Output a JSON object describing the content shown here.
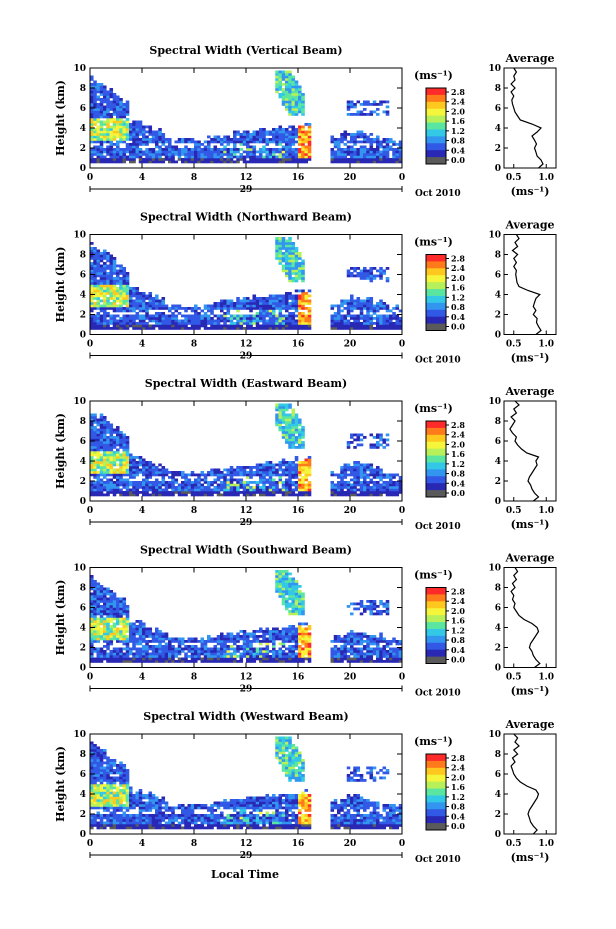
{
  "figure": {
    "xlabel": "Local Time",
    "date_label": "Oct 2010",
    "day_label": "29",
    "ylabel": "Height (km)",
    "unit_label": "(ms⁻¹)",
    "avg_title": "Average",
    "avg_xlabel": "(ms⁻¹)"
  },
  "colorbar": {
    "ticks": [
      "2.8",
      "2.4",
      "2.0",
      "1.6",
      "1.2",
      "0.8",
      "0.4",
      "0.0"
    ],
    "colors": [
      "#ff2a2a",
      "#ff7a1a",
      "#ffc81e",
      "#f5f53c",
      "#b8f05a",
      "#5ae6a0",
      "#32c8e6",
      "#3296f0",
      "#3258e6",
      "#2828b4",
      "#5a5a5a"
    ]
  },
  "chart_data": [
    {
      "type": "heatmap",
      "title": "Spectral Width (Vertical Beam)",
      "x_ticks": [
        "0",
        "4",
        "8",
        "12",
        "16",
        "20",
        "0"
      ],
      "y_ticks": [
        "0",
        "2",
        "4",
        "6",
        "8",
        "10"
      ],
      "xlim": [
        0,
        24
      ],
      "ylim": [
        0,
        10
      ],
      "colorbar_range": [
        0.0,
        3.0
      ],
      "data_gap_hours": [
        16.8,
        18.4
      ],
      "average_profile": {
        "x_ticks": [
          "0.5",
          "1.0"
        ],
        "xlim": [
          0.35,
          1.15
        ],
        "ylim": [
          0,
          10
        ],
        "points": [
          [
            0.88,
            0.0
          ],
          [
            0.95,
            0.4
          ],
          [
            0.92,
            0.8
          ],
          [
            0.86,
            1.2
          ],
          [
            0.84,
            1.6
          ],
          [
            0.82,
            2.0
          ],
          [
            0.85,
            2.4
          ],
          [
            0.82,
            2.8
          ],
          [
            0.78,
            3.2
          ],
          [
            0.86,
            3.6
          ],
          [
            0.92,
            4.0
          ],
          [
            0.78,
            4.4
          ],
          [
            0.6,
            4.8
          ],
          [
            0.56,
            5.2
          ],
          [
            0.52,
            5.6
          ],
          [
            0.5,
            6.0
          ],
          [
            0.48,
            6.4
          ],
          [
            0.47,
            6.8
          ],
          [
            0.5,
            7.2
          ],
          [
            0.46,
            7.6
          ],
          [
            0.52,
            8.0
          ],
          [
            0.46,
            8.4
          ],
          [
            0.52,
            8.8
          ],
          [
            0.5,
            9.2
          ],
          [
            0.54,
            9.6
          ],
          [
            0.5,
            10.0
          ]
        ]
      }
    },
    {
      "type": "heatmap",
      "title": "Spectral Width (Northward Beam)",
      "x_ticks": [
        "0",
        "4",
        "8",
        "12",
        "16",
        "20",
        "0"
      ],
      "y_ticks": [
        "0",
        "2",
        "4",
        "6",
        "8",
        "10"
      ],
      "xlim": [
        0,
        24
      ],
      "ylim": [
        0,
        10
      ],
      "colorbar_range": [
        0.0,
        3.0
      ],
      "data_gap_hours": [
        16.8,
        18.4
      ],
      "average_profile": {
        "x_ticks": [
          "0.5",
          "1.0"
        ],
        "xlim": [
          0.35,
          1.15
        ],
        "ylim": [
          0,
          10
        ],
        "points": [
          [
            0.84,
            0.0
          ],
          [
            0.92,
            0.4
          ],
          [
            0.88,
            0.8
          ],
          [
            0.85,
            1.2
          ],
          [
            0.86,
            1.6
          ],
          [
            0.8,
            2.0
          ],
          [
            0.84,
            2.4
          ],
          [
            0.8,
            2.8
          ],
          [
            0.82,
            3.2
          ],
          [
            0.84,
            3.6
          ],
          [
            0.9,
            4.0
          ],
          [
            0.72,
            4.4
          ],
          [
            0.58,
            4.8
          ],
          [
            0.55,
            5.2
          ],
          [
            0.54,
            5.6
          ],
          [
            0.53,
            6.0
          ],
          [
            0.54,
            6.4
          ],
          [
            0.5,
            6.8
          ],
          [
            0.54,
            7.2
          ],
          [
            0.5,
            7.6
          ],
          [
            0.56,
            8.0
          ],
          [
            0.48,
            8.4
          ],
          [
            0.56,
            8.8
          ],
          [
            0.52,
            9.2
          ],
          [
            0.58,
            9.6
          ],
          [
            0.54,
            10.0
          ]
        ]
      }
    },
    {
      "type": "heatmap",
      "title": "Spectral Width (Eastward Beam)",
      "x_ticks": [
        "0",
        "4",
        "8",
        "12",
        "16",
        "20",
        "0"
      ],
      "y_ticks": [
        "0",
        "2",
        "4",
        "6",
        "8",
        "10"
      ],
      "xlim": [
        0,
        24
      ],
      "ylim": [
        0,
        10
      ],
      "colorbar_range": [
        0.0,
        3.0
      ],
      "data_gap_hours": [
        16.8,
        18.4
      ],
      "average_profile": {
        "x_ticks": [
          "0.5",
          "1.0"
        ],
        "xlim": [
          0.35,
          1.15
        ],
        "ylim": [
          0,
          10
        ],
        "points": [
          [
            0.8,
            0.0
          ],
          [
            0.88,
            0.4
          ],
          [
            0.82,
            0.8
          ],
          [
            0.78,
            1.2
          ],
          [
            0.76,
            1.6
          ],
          [
            0.72,
            2.0
          ],
          [
            0.74,
            2.4
          ],
          [
            0.78,
            2.8
          ],
          [
            0.82,
            3.2
          ],
          [
            0.86,
            3.6
          ],
          [
            0.84,
            4.0
          ],
          [
            0.88,
            4.4
          ],
          [
            0.7,
            4.8
          ],
          [
            0.62,
            5.2
          ],
          [
            0.56,
            5.6
          ],
          [
            0.52,
            6.0
          ],
          [
            0.54,
            6.4
          ],
          [
            0.48,
            6.8
          ],
          [
            0.44,
            7.2
          ],
          [
            0.48,
            7.6
          ],
          [
            0.52,
            8.0
          ],
          [
            0.46,
            8.4
          ],
          [
            0.54,
            8.8
          ],
          [
            0.5,
            9.2
          ],
          [
            0.58,
            9.6
          ],
          [
            0.52,
            10.0
          ]
        ]
      }
    },
    {
      "type": "heatmap",
      "title": "Spectral Width (Southward Beam)",
      "x_ticks": [
        "0",
        "4",
        "8",
        "12",
        "16",
        "20",
        "0"
      ],
      "y_ticks": [
        "0",
        "2",
        "4",
        "6",
        "8",
        "10"
      ],
      "xlim": [
        0,
        24
      ],
      "ylim": [
        0,
        10
      ],
      "colorbar_range": [
        0.0,
        3.0
      ],
      "data_gap_hours": [
        16.8,
        18.4
      ],
      "average_profile": {
        "x_ticks": [
          "0.5",
          "1.0"
        ],
        "xlim": [
          0.35,
          1.15
        ],
        "ylim": [
          0,
          10
        ],
        "points": [
          [
            0.82,
            0.0
          ],
          [
            0.9,
            0.4
          ],
          [
            0.84,
            0.8
          ],
          [
            0.8,
            1.2
          ],
          [
            0.78,
            1.6
          ],
          [
            0.74,
            2.0
          ],
          [
            0.76,
            2.4
          ],
          [
            0.8,
            2.8
          ],
          [
            0.84,
            3.2
          ],
          [
            0.88,
            3.6
          ],
          [
            0.86,
            4.0
          ],
          [
            0.78,
            4.4
          ],
          [
            0.66,
            4.8
          ],
          [
            0.58,
            5.2
          ],
          [
            0.54,
            5.6
          ],
          [
            0.5,
            6.0
          ],
          [
            0.52,
            6.4
          ],
          [
            0.48,
            6.8
          ],
          [
            0.5,
            7.2
          ],
          [
            0.46,
            7.6
          ],
          [
            0.52,
            8.0
          ],
          [
            0.48,
            8.4
          ],
          [
            0.54,
            8.8
          ],
          [
            0.5,
            9.2
          ],
          [
            0.56,
            9.6
          ],
          [
            0.52,
            10.0
          ]
        ]
      }
    },
    {
      "type": "heatmap",
      "title": "Spectral Width (Westward Beam)",
      "x_ticks": [
        "0",
        "4",
        "8",
        "12",
        "16",
        "20",
        "0"
      ],
      "y_ticks": [
        "0",
        "2",
        "4",
        "6",
        "8",
        "10"
      ],
      "xlim": [
        0,
        24
      ],
      "ylim": [
        0,
        10
      ],
      "colorbar_range": [
        0.0,
        3.0
      ],
      "data_gap_hours": [
        16.8,
        18.4
      ],
      "average_profile": {
        "x_ticks": [
          "0.5",
          "1.0"
        ],
        "xlim": [
          0.35,
          1.15
        ],
        "ylim": [
          0,
          10
        ],
        "points": [
          [
            0.8,
            0.0
          ],
          [
            0.86,
            0.4
          ],
          [
            0.8,
            0.8
          ],
          [
            0.76,
            1.2
          ],
          [
            0.74,
            1.6
          ],
          [
            0.72,
            2.0
          ],
          [
            0.74,
            2.4
          ],
          [
            0.78,
            2.8
          ],
          [
            0.82,
            3.2
          ],
          [
            0.86,
            3.6
          ],
          [
            0.88,
            4.0
          ],
          [
            0.84,
            4.4
          ],
          [
            0.7,
            4.8
          ],
          [
            0.6,
            5.2
          ],
          [
            0.54,
            5.6
          ],
          [
            0.5,
            6.0
          ],
          [
            0.48,
            6.4
          ],
          [
            0.46,
            6.8
          ],
          [
            0.52,
            7.2
          ],
          [
            0.48,
            7.6
          ],
          [
            0.56,
            8.0
          ],
          [
            0.5,
            8.4
          ],
          [
            0.58,
            8.8
          ],
          [
            0.52,
            9.2
          ],
          [
            0.56,
            9.6
          ],
          [
            0.5,
            10.0
          ]
        ]
      }
    }
  ]
}
